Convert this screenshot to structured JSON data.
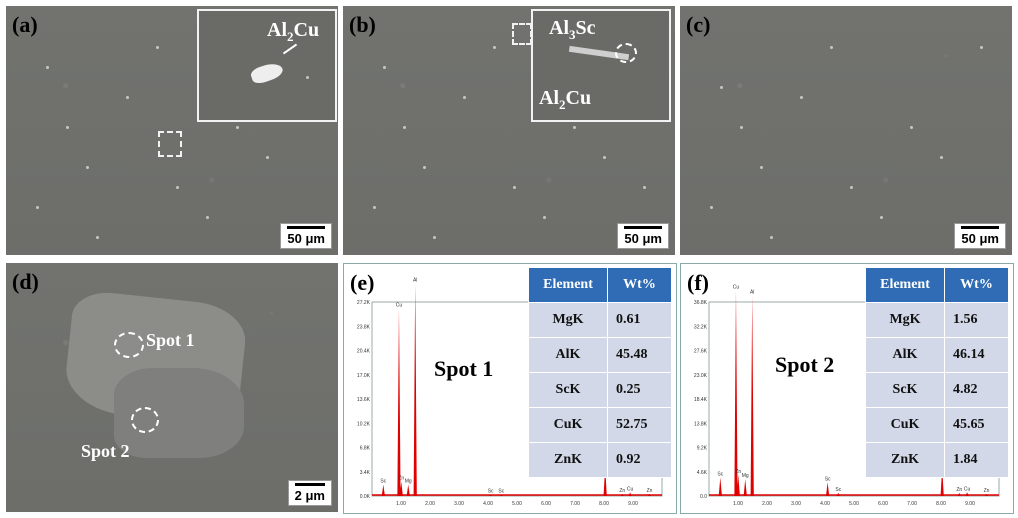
{
  "panels": {
    "a": {
      "label": "(a)",
      "scale": "50 μm",
      "inset_phase": "Al2Cu",
      "phase_main": "Al",
      "phase_sub": "2",
      "phase_tail": "Cu"
    },
    "b": {
      "label": "(b)",
      "scale": "50 μm",
      "phase1_main": "Al",
      "phase1_sub": "3",
      "phase1_tail": "Sc",
      "phase2_main": "Al",
      "phase2_sub": "2",
      "phase2_tail": "Cu"
    },
    "c": {
      "label": "(c)",
      "scale": "50 μm"
    },
    "d": {
      "label": "(d)",
      "scale": "2 μm",
      "spot1": "Spot 1",
      "spot2": "Spot 2"
    },
    "e": {
      "label": "(e)",
      "spot": "Spot 1",
      "table": {
        "headers": [
          "Element",
          "Wt%"
        ],
        "rows": [
          [
            "MgK",
            "0.61"
          ],
          [
            "AlK",
            "45.48"
          ],
          [
            "ScK",
            "0.25"
          ],
          [
            "CuK",
            "52.75"
          ],
          [
            "ZnK",
            "0.92"
          ]
        ]
      }
    },
    "f": {
      "label": "(f)",
      "spot": "Spot 2",
      "table": {
        "headers": [
          "Element",
          "Wt%"
        ],
        "rows": [
          [
            "MgK",
            "1.56"
          ],
          [
            "AlK",
            "46.14"
          ],
          [
            "ScK",
            "4.82"
          ],
          [
            "CuK",
            "45.65"
          ],
          [
            "ZnK",
            "1.84"
          ]
        ]
      }
    }
  },
  "chart_data": [
    {
      "type": "line",
      "title": "",
      "xlabel": "",
      "ylabel": "",
      "x_ticks": [
        "1.00",
        "2.00",
        "3.00",
        "4.00",
        "5.00",
        "6.00",
        "7.00",
        "8.00",
        "9.00"
      ],
      "y_ticks": [
        "0.0K",
        "3.4K",
        "6.8K",
        "10.2K",
        "13.6K",
        "17.0K",
        "20.4K",
        "23.8K",
        "27.2K"
      ],
      "peaks": [
        {
          "label": "Sc",
          "x": 0.39,
          "y": 1.6
        },
        {
          "label": "Cu",
          "x": 0.93,
          "y": 26.3
        },
        {
          "label": "Zn",
          "x": 1.01,
          "y": 2.0
        },
        {
          "label": "Mg",
          "x": 1.25,
          "y": 1.6
        },
        {
          "label": "Al",
          "x": 1.49,
          "y": 29.8
        },
        {
          "label": "Sc",
          "x": 4.09,
          "y": 0.2
        },
        {
          "label": "Sc",
          "x": 4.46,
          "y": 0.2
        },
        {
          "label": "Cu",
          "x": 8.04,
          "y": 4.2
        },
        {
          "label": "Zn",
          "x": 8.63,
          "y": 0.3
        },
        {
          "label": "Cu",
          "x": 8.9,
          "y": 0.5
        },
        {
          "label": "Zn",
          "x": 9.57,
          "y": 0.3
        }
      ]
    },
    {
      "type": "line",
      "title": "",
      "xlabel": "",
      "ylabel": "",
      "x_ticks": [
        "1.00",
        "2.00",
        "3.00",
        "4.00",
        "5.00",
        "6.00",
        "7.00",
        "8.00",
        "9.00"
      ],
      "y_ticks": [
        "0.0",
        "4.6K",
        "9.2K",
        "13.8K",
        "18.4K",
        "23.0K",
        "27.6K",
        "32.2K",
        "36.8K"
      ],
      "peaks": [
        {
          "label": "Sc",
          "x": 0.39,
          "y": 3.5
        },
        {
          "label": "Cu",
          "x": 0.93,
          "y": 39.0
        },
        {
          "label": "Zn",
          "x": 1.01,
          "y": 4.0
        },
        {
          "label": "Mg",
          "x": 1.25,
          "y": 3.2
        },
        {
          "label": "Al",
          "x": 1.49,
          "y": 38.0
        },
        {
          "label": "Sc",
          "x": 4.09,
          "y": 2.6
        },
        {
          "label": "Sc",
          "x": 4.46,
          "y": 0.6
        },
        {
          "label": "Cu",
          "x": 8.04,
          "y": 5.4
        },
        {
          "label": "Zn",
          "x": 8.63,
          "y": 0.6
        },
        {
          "label": "Cu",
          "x": 8.9,
          "y": 0.7
        },
        {
          "label": "Zn",
          "x": 9.57,
          "y": 0.4
        }
      ]
    }
  ]
}
